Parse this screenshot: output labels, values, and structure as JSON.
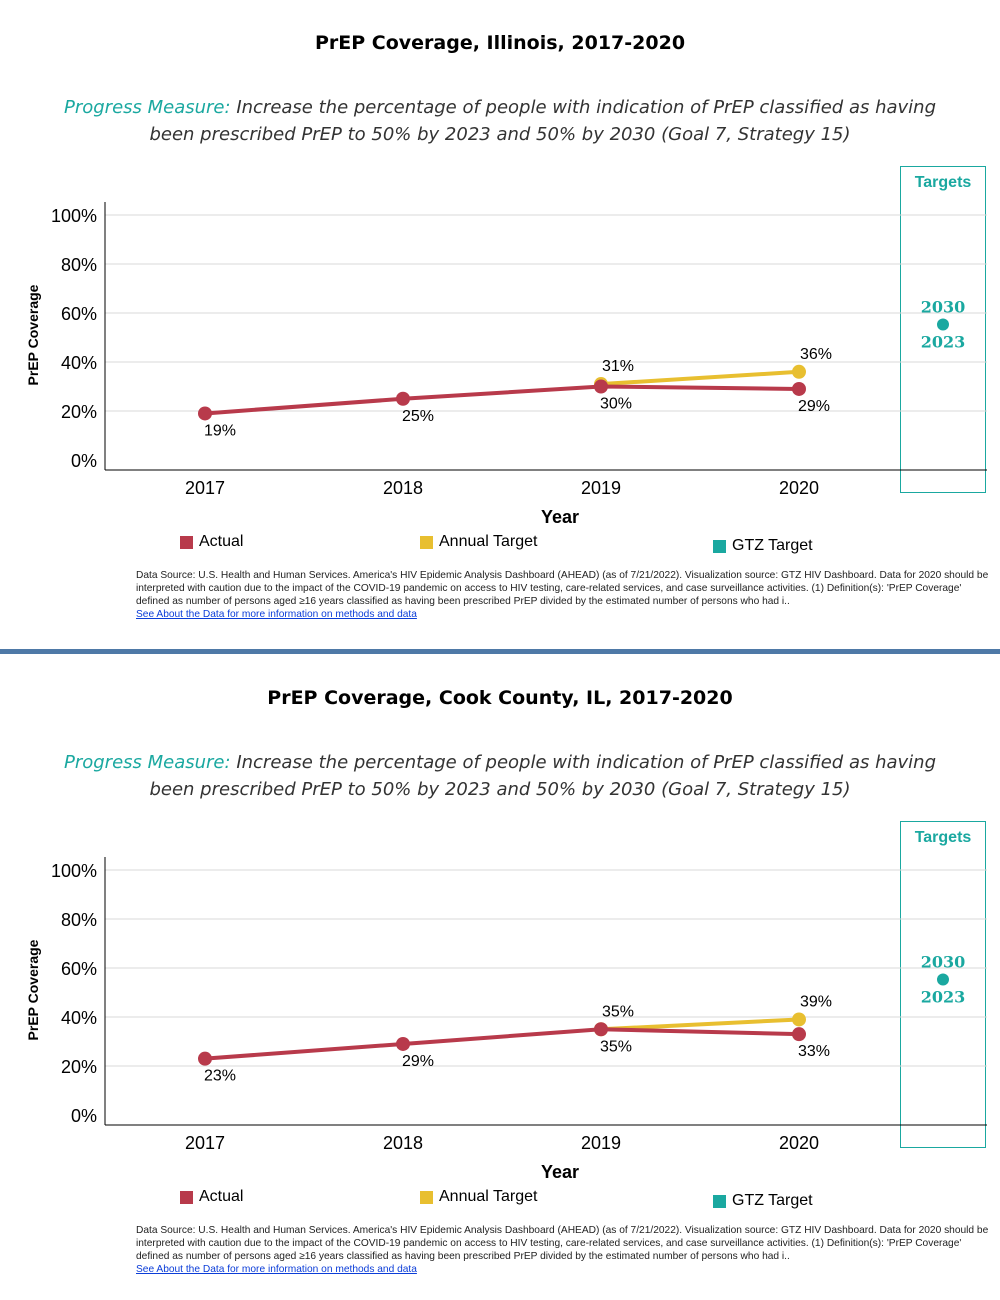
{
  "panels": [
    {
      "title": "PrEP Coverage, Illinois, 2017-2020",
      "measure_label": "Progress Measure:",
      "measure_text": "Increase the percentage of people with indication of PrEP classified as having been prescribed PrEP to 50% by 2023 and 50% by 2030 (Goal 7, Strategy 15)",
      "footnote": "Data Source: U.S. Health and Human Services. America's HIV Epidemic Analysis Dashboard (AHEAD) (as of 7/21/2022). Visualization source: GTZ HIV Dashboard. Data for 2020 should be interpreted with caution due to the impact of the COVID-19 pandemic on access to HIV testing, care-related services, and case surveillance activities. (1) Definition(s): 'PrEP Coverage' defined as number of persons aged ≥16 years classified as having been prescribed PrEP divided by the estimated number of persons who had i..",
      "link_text": "See About the Data for more information on methods and data"
    },
    {
      "title": "PrEP Coverage, Cook County, IL, 2017-2020",
      "measure_label": "Progress Measure:",
      "measure_text": "Increase the percentage of people with indication of PrEP classified as having been prescribed PrEP to 50% by 2023 and 50% by 2030 (Goal 7, Strategy 15)",
      "footnote": "Data Source: U.S. Health and Human Services. America's HIV Epidemic Analysis Dashboard (AHEAD) (as of 7/21/2022). Visualization source: GTZ HIV Dashboard. Data for 2020 should be interpreted with caution due to the impact of the COVID-19 pandemic on access to HIV testing, care-related services, and case surveillance activities. (1) Definition(s): 'PrEP Coverage' defined as number of persons aged ≥16 years classified as having been prescribed PrEP divided by the estimated number of persons who had i..",
      "link_text": "See About the Data for more information on methods and data"
    }
  ],
  "legend": {
    "actual": "Actual",
    "annual": "Annual Target",
    "gtz": "GTZ Target"
  },
  "targets_label": "Targets",
  "colors": {
    "actual": "#b83a4b",
    "annual": "#e8bf30",
    "gtz": "#1aa8a0",
    "grid": "#d9d9d9"
  },
  "chart_data": [
    {
      "type": "line",
      "title": "PrEP Coverage, Illinois, 2017-2020",
      "xlabel": "Year",
      "ylabel": "PrEP Coverage",
      "categories": [
        "2017",
        "2018",
        "2019",
        "2020"
      ],
      "y_ticks": [
        "0%",
        "20%",
        "40%",
        "60%",
        "80%",
        "100%"
      ],
      "ylim": [
        0,
        100
      ],
      "series": [
        {
          "name": "Actual",
          "x": [
            "2017",
            "2018",
            "2019",
            "2020"
          ],
          "values": [
            19,
            25,
            30,
            29
          ],
          "labels": [
            "19%",
            "25%",
            "30%",
            "29%"
          ]
        },
        {
          "name": "Annual Target",
          "x": [
            "2019",
            "2020"
          ],
          "values": [
            31,
            36
          ],
          "labels": [
            "31%",
            "36%"
          ]
        }
      ],
      "gtz_target": {
        "name": "GTZ Target",
        "value": 50,
        "years": [
          "2030",
          "2023"
        ]
      }
    },
    {
      "type": "line",
      "title": "PrEP Coverage, Cook County, IL, 2017-2020",
      "xlabel": "Year",
      "ylabel": "PrEP Coverage",
      "categories": [
        "2017",
        "2018",
        "2019",
        "2020"
      ],
      "y_ticks": [
        "0%",
        "20%",
        "40%",
        "60%",
        "80%",
        "100%"
      ],
      "ylim": [
        0,
        100
      ],
      "series": [
        {
          "name": "Actual",
          "x": [
            "2017",
            "2018",
            "2019",
            "2020"
          ],
          "values": [
            23,
            29,
            35,
            33
          ],
          "labels": [
            "23%",
            "29%",
            "35%",
            "33%"
          ]
        },
        {
          "name": "Annual Target",
          "x": [
            "2019",
            "2020"
          ],
          "values": [
            35,
            39
          ],
          "labels": [
            "35%",
            "39%"
          ]
        }
      ],
      "gtz_target": {
        "name": "GTZ Target",
        "value": 50,
        "years": [
          "2030",
          "2023"
        ]
      }
    }
  ]
}
